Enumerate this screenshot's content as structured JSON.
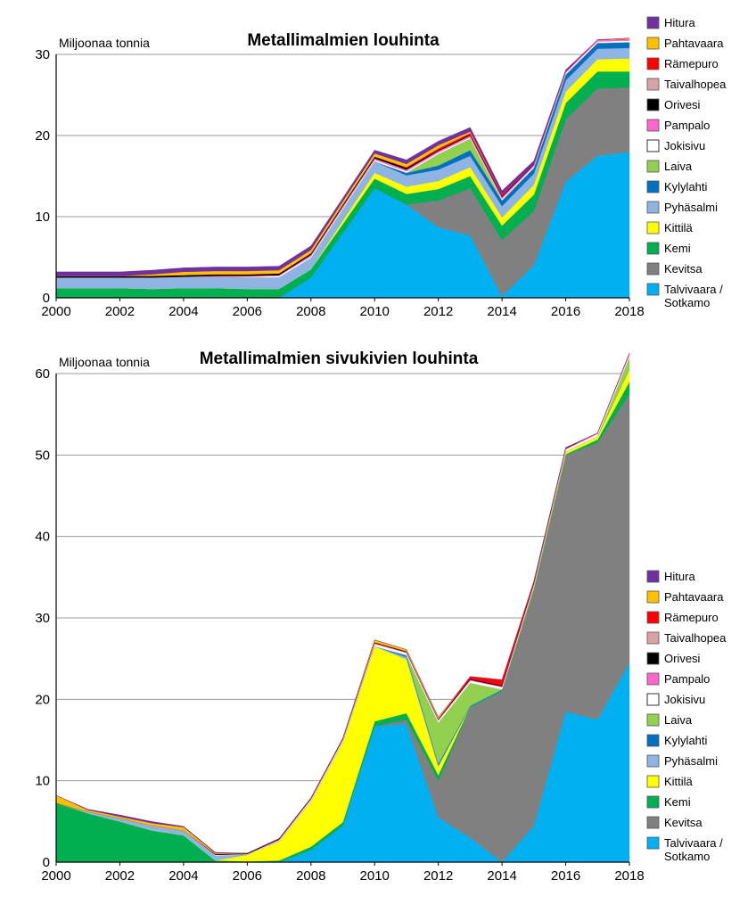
{
  "chart_data": [
    {
      "type": "area",
      "stacked": true,
      "title": "Metallimalmien louhinta",
      "ylabel": "Miljoonaa tonnia",
      "xlabel": "",
      "x": [
        2000,
        2001,
        2002,
        2003,
        2004,
        2005,
        2006,
        2007,
        2008,
        2009,
        2010,
        2011,
        2012,
        2013,
        2014,
        2015,
        2016,
        2017,
        2018
      ],
      "x_ticks": [
        "2000",
        "2002",
        "2004",
        "2006",
        "2008",
        "2010",
        "2012",
        "2014",
        "2016",
        "2018"
      ],
      "y_ticks": [
        "0",
        "10",
        "20",
        "30"
      ],
      "ylim": [
        0,
        30
      ],
      "grid": true,
      "legend_position": "right",
      "series": [
        {
          "name": "Talvivaara / Sotkamo",
          "color": "#00b0f0",
          "values": [
            0,
            0,
            0,
            0,
            0,
            0,
            0,
            0,
            2.5,
            8,
            13.5,
            11.5,
            8.7,
            7.7,
            0.2,
            4,
            14.3,
            17.5,
            18
          ]
        },
        {
          "name": "Kevitsa",
          "color": "#808080",
          "values": [
            0,
            0,
            0,
            0,
            0,
            0,
            0,
            0,
            0,
            0,
            0,
            0,
            3.3,
            5.8,
            6.9,
            6.7,
            7.7,
            8.3,
            7.9
          ]
        },
        {
          "name": "Kemi",
          "color": "#00b050",
          "values": [
            1.2,
            1.2,
            1.2,
            1.1,
            1.2,
            1.2,
            1.1,
            1.1,
            1.0,
            1.1,
            1.2,
            1.3,
            1.4,
            1.5,
            1.8,
            2.0,
            2.0,
            2.1,
            2.0
          ]
        },
        {
          "name": "Kittilä",
          "color": "#ffff00",
          "values": [
            0,
            0,
            0,
            0,
            0,
            0,
            0,
            0,
            0,
            0.4,
            0.7,
            0.9,
            1.0,
            1.1,
            1.0,
            1.2,
            1.4,
            1.5,
            1.6
          ]
        },
        {
          "name": "Pyhäsalmi",
          "color": "#8db4e2",
          "values": [
            1.3,
            1.3,
            1.3,
            1.4,
            1.4,
            1.4,
            1.4,
            1.4,
            1.4,
            1.4,
            1.4,
            1.4,
            1.4,
            1.4,
            1.4,
            1.4,
            1.4,
            1.3,
            1.3
          ]
        },
        {
          "name": "Kylylahti",
          "color": "#0070c0",
          "values": [
            0,
            0,
            0,
            0,
            0,
            0,
            0,
            0,
            0,
            0,
            0,
            0.3,
            0.5,
            0.7,
            0.7,
            0.7,
            0.7,
            0.7,
            0.7
          ]
        },
        {
          "name": "Laiva",
          "color": "#92d050",
          "values": [
            0,
            0,
            0,
            0,
            0,
            0,
            0,
            0,
            0,
            0,
            0,
            0,
            1.4,
            1.4,
            0,
            0,
            0,
            0,
            0
          ]
        },
        {
          "name": "Jokisivu",
          "color": "#ffffff",
          "values": [
            0,
            0,
            0,
            0,
            0,
            0,
            0.1,
            0.2,
            0.2,
            0.2,
            0.2,
            0.2,
            0.2,
            0.2,
            0.2,
            0.2,
            0.2,
            0.2,
            0.2
          ]
        },
        {
          "name": "Pampalo",
          "color": "#ff66cc",
          "values": [
            0,
            0,
            0,
            0,
            0,
            0.1,
            0.1,
            0.1,
            0.2,
            0.2,
            0.2,
            0.2,
            0.2,
            0.2,
            0.2,
            0.2,
            0.2,
            0.2,
            0.2
          ]
        },
        {
          "name": "Orivesi",
          "color": "#000000",
          "values": [
            0.2,
            0.2,
            0.2,
            0.2,
            0.2,
            0.2,
            0.2,
            0.2,
            0.2,
            0.2,
            0.2,
            0.2,
            0.1,
            0.1,
            0.1,
            0.1,
            0.1,
            0,
            0
          ]
        },
        {
          "name": "Taivalhopea",
          "color": "#d9a3a3",
          "values": [
            0,
            0,
            0,
            0,
            0,
            0,
            0,
            0,
            0,
            0,
            0,
            0,
            0,
            0,
            0,
            0,
            0,
            0,
            0
          ]
        },
        {
          "name": "Rämepuro",
          "color": "#ff0000",
          "values": [
            0,
            0,
            0,
            0,
            0,
            0,
            0,
            0,
            0,
            0,
            0,
            0.1,
            0.2,
            0.2,
            0.2,
            0,
            0,
            0,
            0
          ]
        },
        {
          "name": "Pahtavaara",
          "color": "#ffc000",
          "values": [
            0,
            0,
            0,
            0.2,
            0.4,
            0.4,
            0.4,
            0.4,
            0.4,
            0.4,
            0.4,
            0.4,
            0.4,
            0.2,
            0,
            0,
            0,
            0,
            0.1
          ]
        },
        {
          "name": "Hitura",
          "color": "#7030a0",
          "values": [
            0.5,
            0.5,
            0.5,
            0.5,
            0.5,
            0.5,
            0.5,
            0.5,
            0.5,
            0.4,
            0.4,
            0.5,
            0.5,
            0.5,
            0.5,
            0.4,
            0.1,
            0,
            0
          ]
        }
      ]
    },
    {
      "type": "area",
      "stacked": true,
      "title": "Metallimalmien sivukivien louhinta",
      "ylabel": "Miljoonaa tonnia",
      "xlabel": "",
      "x": [
        2000,
        2001,
        2002,
        2003,
        2004,
        2005,
        2006,
        2007,
        2008,
        2009,
        2010,
        2011,
        2012,
        2013,
        2014,
        2015,
        2016,
        2017,
        2018
      ],
      "x_ticks": [
        "2000",
        "2002",
        "2004",
        "2006",
        "2008",
        "2010",
        "2012",
        "2014",
        "2016",
        "2018"
      ],
      "y_ticks": [
        "0",
        "10",
        "20",
        "30",
        "40",
        "50",
        "60"
      ],
      "ylim": [
        0,
        60
      ],
      "grid": true,
      "legend_position": "right",
      "series": [
        {
          "name": "Talvivaara / Sotkamo",
          "color": "#00b0f0",
          "values": [
            0,
            0,
            0,
            0,
            0,
            0,
            0,
            0,
            1.5,
            4.5,
            16.7,
            17,
            5.5,
            3,
            0,
            4.5,
            18.5,
            17.5,
            24.5
          ]
        },
        {
          "name": "Kevitsa",
          "color": "#808080",
          "values": [
            0,
            0,
            0,
            0,
            0,
            0,
            0,
            0,
            0,
            0,
            0,
            0.5,
            4.5,
            16,
            21,
            29,
            31.5,
            34,
            33
          ]
        },
        {
          "name": "Kemi",
          "color": "#00b050",
          "values": [
            7.3,
            6.0,
            5.0,
            3.9,
            3.3,
            0.2,
            0.1,
            0.2,
            0.4,
            0.4,
            0.6,
            0.8,
            0.7,
            0.1,
            0.1,
            0.1,
            0.1,
            0.4,
            1.5
          ]
        },
        {
          "name": "Kittilä",
          "color": "#ffff00",
          "values": [
            0,
            0,
            0,
            0,
            0,
            0,
            0.8,
            2.4,
            5.6,
            9.9,
            9.2,
            6.6,
            1.0,
            0,
            0,
            0.2,
            0.3,
            0.4,
            1.5
          ]
        },
        {
          "name": "Pyhäsalmi",
          "color": "#8db4e2",
          "values": [
            0,
            0.2,
            0.4,
            0.6,
            0.6,
            0.6,
            0,
            0,
            0,
            0,
            0,
            0.3,
            0.2,
            0,
            0,
            0,
            0,
            0,
            0
          ]
        },
        {
          "name": "Kylylahti",
          "color": "#0070c0",
          "values": [
            0,
            0,
            0,
            0,
            0,
            0,
            0,
            0,
            0,
            0,
            0,
            0.2,
            0.2,
            0.1,
            0.1,
            0,
            0,
            0,
            0
          ]
        },
        {
          "name": "Laiva",
          "color": "#92d050",
          "values": [
            0,
            0,
            0,
            0,
            0,
            0,
            0,
            0,
            0,
            0,
            0,
            0,
            5,
            2.8,
            0,
            0,
            0,
            0,
            1.5
          ]
        },
        {
          "name": "Jokisivu",
          "color": "#ffffff",
          "values": [
            0,
            0,
            0,
            0,
            0,
            0.1,
            0.1,
            0.1,
            0.2,
            0.2,
            0.3,
            0.3,
            0.3,
            0.3,
            0.3,
            0.3,
            0.3,
            0.3,
            0.3
          ]
        },
        {
          "name": "Pampalo",
          "color": "#ff66cc",
          "values": [
            0,
            0,
            0,
            0,
            0,
            0,
            0,
            0.1,
            0.1,
            0.1,
            0.1,
            0.1,
            0.1,
            0.1,
            0.1,
            0.1,
            0.1,
            0.1,
            0.2
          ]
        },
        {
          "name": "Orivesi",
          "color": "#000000",
          "values": [
            0,
            0,
            0,
            0,
            0,
            0.1,
            0.1,
            0.1,
            0.1,
            0.1,
            0.1,
            0.1,
            0.1,
            0.1,
            0.1,
            0.1,
            0.1,
            0,
            0
          ]
        },
        {
          "name": "Taivalhopea",
          "color": "#d9a3a3",
          "values": [
            0,
            0,
            0,
            0,
            0,
            0,
            0,
            0,
            0,
            0,
            0,
            0,
            0,
            0,
            0,
            0,
            0,
            0,
            0
          ]
        },
        {
          "name": "Rämepuro",
          "color": "#ff0000",
          "values": [
            0,
            0,
            0,
            0,
            0,
            0,
            0,
            0,
            0,
            0,
            0,
            0,
            0,
            0.3,
            0.7,
            0.2,
            0,
            0,
            0
          ]
        },
        {
          "name": "Pahtavaara",
          "color": "#ffc000",
          "values": [
            0.9,
            0.2,
            0.2,
            0.3,
            0.4,
            0.1,
            0,
            0,
            0,
            0,
            0.3,
            0.2,
            0.2,
            0,
            0,
            0,
            0,
            0,
            0
          ]
        },
        {
          "name": "Hitura",
          "color": "#7030a0",
          "values": [
            0,
            0.1,
            0.2,
            0.2,
            0.1,
            0.1,
            0,
            0,
            0,
            0,
            0,
            0,
            0,
            0,
            0,
            0,
            0,
            0,
            0
          ]
        }
      ]
    }
  ]
}
